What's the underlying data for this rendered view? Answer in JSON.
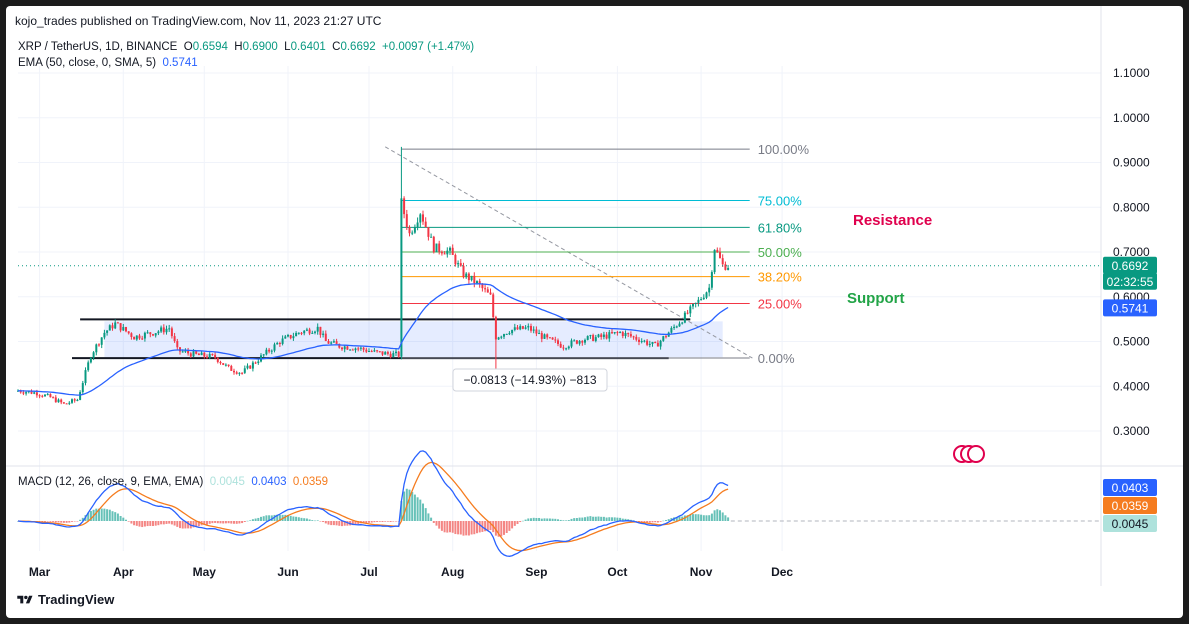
{
  "header": {
    "publisher": "kojo_trades published on TradingView.com, Nov 11, 2023 21:27 UTC",
    "symbol": "XRP / TetherUS, 1D, BINANCE",
    "o_label": "O",
    "o": "0.6594",
    "h_label": "H",
    "h": "0.6900",
    "l_label": "L",
    "l": "0.6401",
    "c_label": "C",
    "c": "0.6692",
    "change": "+0.0097 (+1.47%)",
    "ema_label": "EMA (50, close, 0, SMA, 5)",
    "ema_value": "0.5741",
    "macd_label": "MACD (12, 26, close, 9, EMA, EMA)",
    "macd_hist": "0.0045",
    "macd_line": "0.0403",
    "macd_signal": "0.0359",
    "brand": "TradingView"
  },
  "colors": {
    "up": "#089981",
    "down": "#f23645",
    "ema": "#2962ff",
    "macd": "#2962ff",
    "signal": "#f57c1f",
    "resistance": "#e0004d",
    "support": "#22a447"
  },
  "chart_data": {
    "type": "candlestick",
    "price_axis": {
      "ticks": [
        "1.1000",
        "1.0000",
        "0.9000",
        "0.8000",
        "0.7000",
        "0.6000",
        "0.5000",
        "0.4000",
        "0.3000"
      ],
      "ylim": [
        0.23,
        1.15
      ]
    },
    "time_axis": {
      "ticks": [
        "Mar",
        "Apr",
        "May",
        "Jun",
        "Jul",
        "Aug",
        "Sep",
        "Oct",
        "Nov",
        "Dec"
      ]
    },
    "last_price": "0.6692",
    "countdown": "02:32:55",
    "ema_last": "0.5741",
    "price_path": [
      [
        "2023-02-21",
        0.39
      ],
      [
        "2023-02-28",
        0.385
      ],
      [
        "2023-03-05",
        0.375
      ],
      [
        "2023-03-10",
        0.36
      ],
      [
        "2023-03-15",
        0.37
      ],
      [
        "2023-03-20",
        0.47
      ],
      [
        "2023-03-25",
        0.52
      ],
      [
        "2023-03-29",
        0.54
      ],
      [
        "2023-04-05",
        0.51
      ],
      [
        "2023-04-12",
        0.52
      ],
      [
        "2023-04-18",
        0.53
      ],
      [
        "2023-04-21",
        0.48
      ],
      [
        "2023-04-28",
        0.47
      ],
      [
        "2023-05-05",
        0.465
      ],
      [
        "2023-05-10",
        0.44
      ],
      [
        "2023-05-15",
        0.43
      ],
      [
        "2023-05-22",
        0.465
      ],
      [
        "2023-05-29",
        0.5
      ],
      [
        "2023-06-05",
        0.52
      ],
      [
        "2023-06-12",
        0.53
      ],
      [
        "2023-06-15",
        0.5
      ],
      [
        "2023-06-20",
        0.49
      ],
      [
        "2023-06-27",
        0.485
      ],
      [
        "2023-07-04",
        0.475
      ],
      [
        "2023-07-12",
        0.47
      ],
      [
        "2023-07-13",
        0.81
      ],
      [
        "2023-07-16",
        0.74
      ],
      [
        "2023-07-20",
        0.79
      ],
      [
        "2023-07-25",
        0.71
      ],
      [
        "2023-07-31",
        0.7
      ],
      [
        "2023-08-05",
        0.65
      ],
      [
        "2023-08-10",
        0.63
      ],
      [
        "2023-08-15",
        0.6
      ],
      [
        "2023-08-17",
        0.51
      ],
      [
        "2023-08-22",
        0.525
      ],
      [
        "2023-08-29",
        0.53
      ],
      [
        "2023-09-05",
        0.505
      ],
      [
        "2023-09-11",
        0.49
      ],
      [
        "2023-09-18",
        0.505
      ],
      [
        "2023-09-25",
        0.51
      ],
      [
        "2023-10-02",
        0.52
      ],
      [
        "2023-10-09",
        0.505
      ],
      [
        "2023-10-15",
        0.49
      ],
      [
        "2023-10-20",
        0.52
      ],
      [
        "2023-10-25",
        0.55
      ],
      [
        "2023-10-31",
        0.59
      ],
      [
        "2023-11-04",
        0.62
      ],
      [
        "2023-11-06",
        0.71
      ],
      [
        "2023-11-09",
        0.67
      ],
      [
        "2023-11-11",
        0.669
      ]
    ],
    "fibonacci": {
      "levels": [
        {
          "label": "100.00%",
          "price": 0.93,
          "color": "#787b86"
        },
        {
          "label": "75.00%",
          "price": 0.815,
          "color": "#00bcd4"
        },
        {
          "label": "61.80%",
          "price": 0.755,
          "color": "#089981"
        },
        {
          "label": "50.00%",
          "price": 0.7,
          "color": "#4caf50"
        },
        {
          "label": "38.20%",
          "price": 0.645,
          "color": "#ff9800"
        },
        {
          "label": "25.00%",
          "price": 0.585,
          "color": "#f23645"
        },
        {
          "label": "0.00%",
          "price": 0.463,
          "color": "#787b86"
        }
      ]
    },
    "range_box": {
      "top": 0.545,
      "bottom": 0.465
    },
    "annotations": [
      {
        "text": "Resistance",
        "color": "#e0004d"
      },
      {
        "text": "Support",
        "color": "#22a447"
      }
    ],
    "measure": "−0.0813 (−14.93%) −813",
    "macd": {
      "labels": {
        "macd": "0.0403",
        "signal": "0.0359",
        "hist": "0.0045"
      }
    }
  }
}
